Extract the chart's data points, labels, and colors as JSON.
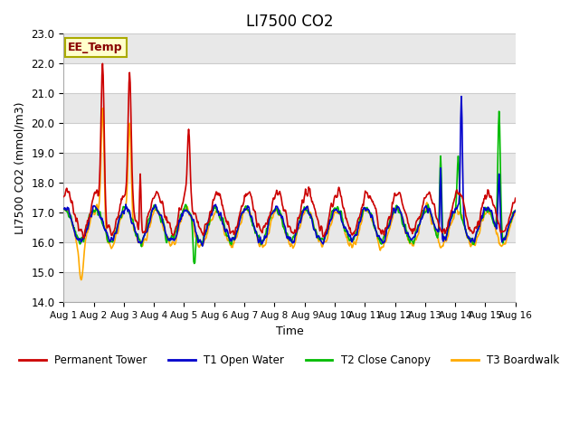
{
  "title": "LI7500 CO2",
  "xlabel": "Time",
  "ylabel": "LI7500 CO2 (mmol/m3)",
  "ylim": [
    14.0,
    23.0
  ],
  "yticks": [
    14.0,
    15.0,
    16.0,
    17.0,
    18.0,
    19.0,
    20.0,
    21.0,
    22.0,
    23.0
  ],
  "fig_bg_color": "#ffffff",
  "plot_bg_color": "#ffffff",
  "band_color": "#e8e8e8",
  "grid_color": "#cccccc",
  "annotation_text": "EE_Temp",
  "annotation_bg": "#ffffcc",
  "annotation_border": "#aaaa00",
  "annotation_text_color": "#880000",
  "series": {
    "permanent_tower": {
      "color": "#cc0000",
      "label": "Permanent Tower",
      "lw": 1.2
    },
    "t1_open_water": {
      "color": "#0000cc",
      "label": "T1 Open Water",
      "lw": 1.2
    },
    "t2_close_canopy": {
      "color": "#00bb00",
      "label": "T2 Close Canopy",
      "lw": 1.2
    },
    "t3_boardwalk": {
      "color": "#ffaa00",
      "label": "T3 Boardwalk",
      "lw": 1.2
    }
  },
  "x_start": 0,
  "x_end": 15,
  "n_points": 720,
  "xtick_labels": [
    "Aug 1",
    "Aug 2",
    "Aug 3",
    "Aug 4",
    "Aug 5",
    "Aug 6",
    "Aug 7",
    "Aug 8",
    "Aug 9",
    "Aug 10",
    "Aug 11",
    "Aug 12",
    "Aug 13",
    "Aug 14",
    "Aug 15",
    "Aug 16"
  ],
  "xtick_positions": [
    0,
    1,
    2,
    3,
    4,
    5,
    6,
    7,
    8,
    9,
    10,
    11,
    12,
    13,
    14,
    15
  ]
}
